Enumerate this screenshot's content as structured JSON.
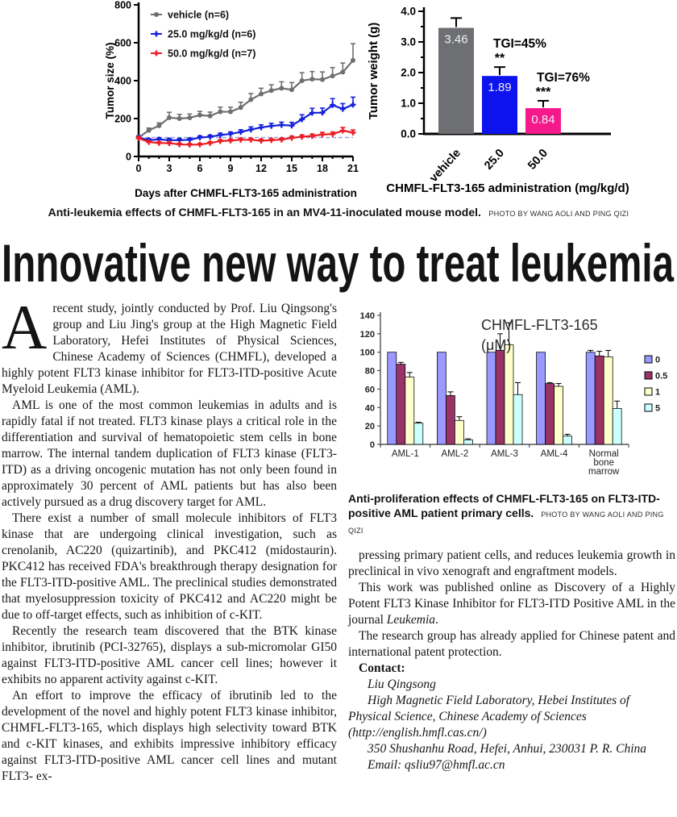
{
  "headline": "Innovative new way to treat leukemia",
  "figures": {
    "fig1_caption": "Anti-leukemia effects of CHMFL-FLT3-165 in an MV4-11-inoculated mouse model.",
    "fig1_credit": "PHOTO BY WANG AOLI AND PING QIZI",
    "fig2_caption": "Anti-proliferation effects of CHMFL-FLT3-165 on FLT3-ITD-positive AML patient primary cells.",
    "fig2_credit": "PHOTO BY WANG AOLI AND PING QIZI"
  },
  "article": {
    "p1_dropcap": "A",
    "p1": "recent study, jointly conducted by Prof. Liu Qingsong's group and Liu Jing's group at the High Magnetic Field Laboratory, Hefei Institutes of Physical Sciences, Chinese Academy of Sciences (CHMFL), developed a highly potent FLT3 kinase inhibitor for FLT3-ITD-positive Acute Myeloid Leukemia (AML).",
    "p2": "AML is one of the most common leukemias in adults and is rapidly fatal if not treated. FLT3 kinase plays a critical role in the differentiation and survival of hematopoietic stem cells in bone marrow. The internal tandem duplication of FLT3 kinase (FLT3-ITD) as a driving oncogenic mutation has not only been found in approximately 30 percent of AML patients but has also been actively pursued as a drug discovery target for AML.",
    "p3": "There exist a number of small molecule inhibitors of FLT3 kinase that are undergoing clinical investigation, such as crenolanib, AC220 (quizartinib), and PKC412 (midostaurin). PKC412 has received FDA's breakthrough therapy designation for the FLT3-ITD-positive AML. The preclinical studies demonstrated that myelosuppression toxicity of PKC412 and AC220 might be due to off-target effects, such as inhibition of c-KIT.",
    "p4": "Recently the research team discovered that the BTK kinase inhibitor, ibrutinib (PCI-32765), displays a sub-micromolar GI50 against FLT3-ITD-positive AML cancer cell lines; however it exhibits no apparent activity against c-KIT.",
    "p5": "An effort to improve the efficacy of ibrutinib led to the development of the novel and highly potent FLT3 kinase inhibitor, CHMFL-FLT3-165, which displays high selectivity toward BTK and c-KIT kinases, and exhibits impressive inhibitory efficacy against FLT3-ITD-positive AML cancer cell lines and mutant FLT3- ex-",
    "p6": "pressing primary patient cells, and reduces leukemia growth in preclinical in vivo xenograft and engraftment models.",
    "p7_pre": "This work was published online as Discovery of a Highly Potent FLT3 Kinase Inhibitor for FLT3-ITD Positive AML in the journal ",
    "p7_italic": "Leukemia",
    "p7_post": ".",
    "p8": "The research group has already applied for Chinese patent and international patent protection.",
    "contact_heading": "Contact:",
    "contact_lines": [
      "Liu Qingsong",
      "High Magnetic Field Laboratory, Hebei Institutes of Physical Science, Chinese Academy of Sciences (http://english.hmfl.cas.cn/)",
      "350 Shushanhu Road, Hefei, Anhui, 230031 P. R. China",
      "Email: qsliu97@hmfl.ac.cn"
    ]
  },
  "chart_data": [
    {
      "id": "tumor-size-line",
      "type": "line",
      "xlabel": "Days after CHMFL-FLT3-165 administration",
      "ylabel": "Tumor size (%)",
      "xlim": [
        0,
        21
      ],
      "ylim": [
        0,
        800
      ],
      "xticks": [
        0,
        3,
        6,
        9,
        12,
        15,
        18,
        21
      ],
      "yticks": [
        0,
        200,
        400,
        600,
        800
      ],
      "baseline": 100,
      "baseline_color": "#96a0e2",
      "x": [
        0,
        1,
        2,
        3,
        4,
        5,
        6,
        7,
        8,
        9,
        10,
        11,
        12,
        13,
        14,
        15,
        16,
        17,
        18,
        19,
        20,
        21
      ],
      "series": [
        {
          "name": "vehicle (n=6)",
          "color": "#6e6f72",
          "marker": "circle",
          "values": [
            100,
            138,
            162,
            205,
            200,
            204,
            218,
            214,
            236,
            236,
            258,
            300,
            330,
            348,
            360,
            352,
            400,
            408,
            406,
            425,
            445,
            507
          ],
          "errors": [
            8,
            12,
            15,
            28,
            22,
            20,
            20,
            20,
            24,
            24,
            28,
            32,
            30,
            30,
            34,
            38,
            42,
            40,
            40,
            44,
            48,
            88
          ]
        },
        {
          "name": "25.0 mg/kg/d (n=6)",
          "color": "#1420d8",
          "marker": "plus",
          "values": [
            100,
            86,
            90,
            86,
            86,
            88,
            100,
            104,
            113,
            119,
            129,
            142,
            153,
            161,
            166,
            163,
            196,
            230,
            231,
            271,
            251,
            273
          ],
          "errors": [
            8,
            8,
            8,
            8,
            8,
            8,
            8,
            8,
            10,
            10,
            12,
            14,
            14,
            14,
            15,
            17,
            24,
            24,
            24,
            34,
            28,
            40
          ]
        },
        {
          "name": "50.0 mg/kg/d (n=7)",
          "color": "#ec1c24",
          "marker": "plus",
          "values": [
            97,
            76,
            71,
            70,
            64,
            62,
            63,
            71,
            81,
            84,
            88,
            88,
            83,
            86,
            89,
            98,
            104,
            108,
            116,
            118,
            136,
            126
          ],
          "errors": [
            6,
            6,
            6,
            6,
            6,
            6,
            6,
            6,
            7,
            7,
            7,
            7,
            7,
            7,
            8,
            9,
            9,
            10,
            11,
            11,
            17,
            14
          ]
        }
      ]
    },
    {
      "id": "tumor-weight-bar",
      "type": "bar",
      "xlabel": "CHMFL-FLT3-165 administration (mg/kg/d)",
      "ylabel": "Tumor weight (g)",
      "ylim": [
        0,
        4
      ],
      "yticks": [
        "0.0",
        "1.0",
        "2.0",
        "3.0",
        "4.0"
      ],
      "categories": [
        "vehicle",
        "25.0",
        "50.0"
      ],
      "values": [
        3.46,
        1.89,
        0.84
      ],
      "errors": [
        0.32,
        0.29,
        0.24
      ],
      "colors": [
        "#6e6f72",
        "#0d13ef",
        "#f5198c"
      ],
      "bar_labels": [
        "3.46",
        "1.89",
        "0.84"
      ],
      "sig": [
        "",
        "**",
        "***"
      ],
      "tgi": [
        "",
        "TGI=45%",
        "TGI=76%"
      ]
    },
    {
      "id": "anti-proliferation-grouped-bar",
      "type": "bar",
      "title": "CHMFL-FLT3-165 (μM)",
      "title_lines": [
        "CHMFL-FLT3-165",
        "(μM)"
      ],
      "ylim": [
        0,
        140
      ],
      "yticks": [
        0,
        20,
        40,
        60,
        80,
        100,
        120,
        140
      ],
      "categories": [
        "AML-1",
        "AML-2",
        "AML-3",
        "AML-4",
        "Normal bone marrow"
      ],
      "legend": [
        "0",
        "0.5",
        "1",
        "5"
      ],
      "legend_position": "right",
      "series": [
        {
          "name": "0",
          "color": "#9999FF",
          "values": [
            100,
            100,
            100,
            100,
            100
          ],
          "errors": [
            0,
            0,
            0,
            0,
            2
          ]
        },
        {
          "name": "0.5",
          "color": "#993366",
          "values": [
            87,
            53,
            102,
            66,
            96
          ],
          "errors": [
            2,
            4,
            18,
            1,
            5
          ]
        },
        {
          "name": "1",
          "color": "#FFFFCC",
          "values": [
            73,
            26,
            108,
            63,
            95
          ],
          "errors": [
            5,
            4,
            24,
            3,
            7
          ]
        },
        {
          "name": "5",
          "color": "#CCFFFF",
          "values": [
            23,
            5,
            54,
            9,
            39
          ],
          "errors": [
            1,
            1,
            13,
            2,
            8
          ]
        }
      ]
    }
  ]
}
